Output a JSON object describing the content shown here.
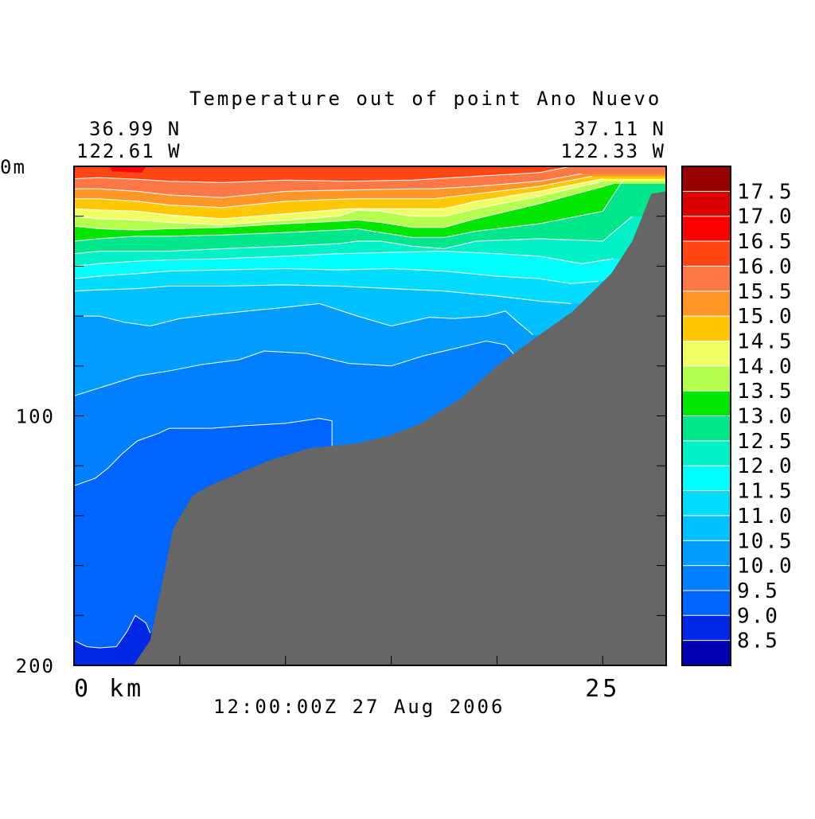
{
  "chart_data": {
    "type": "heatmap",
    "subtype": "filled-contour vertical section",
    "title": "Temperature out of point Ano Nuevo",
    "start_location": {
      "lat": "36.99 N",
      "lon": "122.61 W"
    },
    "end_location": {
      "lat": "37.11 N",
      "lon": "122.33 W"
    },
    "time_label": "12:00:00Z  27 Aug 2006",
    "x_axis": {
      "range": [
        0,
        28
      ],
      "ticks": [
        0,
        5,
        10,
        15,
        20,
        25
      ],
      "labels": [
        {
          "value": 0,
          "text": "0 km"
        },
        {
          "value": 25,
          "text": "25"
        }
      ]
    },
    "y_axis": {
      "range": [
        0,
        200
      ],
      "inverted": true,
      "ticks": [
        0,
        20,
        40,
        60,
        80,
        100,
        120,
        140,
        160,
        180,
        200
      ],
      "labels": [
        {
          "value": 0,
          "text": "0m"
        },
        {
          "value": 100,
          "text": "100"
        },
        {
          "value": 200,
          "text": "200"
        }
      ]
    },
    "colorbar": {
      "labels": [
        "17.5",
        "17.0",
        "16.5",
        "16.0",
        "15.5",
        "15.0",
        "14.5",
        "14.0",
        "13.5",
        "13.0",
        "12.5",
        "12.0",
        "11.5",
        "11.0",
        "10.5",
        "10.0",
        "9.5",
        "9.0",
        "8.5"
      ],
      "levels": [
        8.5,
        9.0,
        9.5,
        10.0,
        10.5,
        11.0,
        11.5,
        12.0,
        12.5,
        13.0,
        13.5,
        14.0,
        14.5,
        15.0,
        15.5,
        16.0,
        16.5,
        17.0,
        17.5
      ],
      "colors": [
        "#0000b4",
        "#0028e6",
        "#0064ff",
        "#0080ff",
        "#009cff",
        "#00c0ff",
        "#00dcff",
        "#00ffff",
        "#00f0c8",
        "#00e68c",
        "#00e600",
        "#b4ff50",
        "#f0ff64",
        "#ffc800",
        "#ff9628",
        "#ff7846",
        "#ff4614",
        "#ff0000",
        "#dc0000",
        "#960000"
      ]
    },
    "bathymetry_depth_m": {
      "x_km": [
        2.8,
        3.6,
        4.7,
        5.6,
        6.4,
        9.2,
        11.1,
        13.4,
        14.9,
        16.4,
        18.3,
        20.0,
        21.6,
        23.6,
        25.4,
        26.4,
        27.3,
        28.0
      ],
      "y_m": [
        200,
        190,
        145,
        132,
        128,
        118,
        113,
        111,
        108,
        103,
        93,
        80,
        70,
        58,
        43,
        30,
        11,
        10
      ],
      "color": "#666666"
    },
    "contour_lines_m": [
      {
        "level": 16.0,
        "x": [
          0,
          1.2,
          3.0,
          4.5,
          7.0,
          10.0,
          13.0,
          16.0,
          19.0,
          22.0,
          23.5
        ],
        "y": [
          5,
          4.5,
          5.2,
          6,
          6.5,
          5.5,
          6,
          5.5,
          4,
          2.5,
          0
        ]
      },
      {
        "level": 15.5,
        "x": [
          0,
          1.2,
          3.0,
          4.5,
          7.0,
          10.0,
          13.0,
          16.0,
          17.0,
          19.0,
          22.0,
          24.0
        ],
        "y": [
          9,
          9,
          10,
          11.5,
          12.5,
          10,
          9.5,
          9,
          9,
          8,
          6,
          3
        ]
      },
      {
        "level": 15.0,
        "x": [
          0,
          1.2,
          3.0,
          4.5,
          7.0,
          10.0,
          13.0,
          16.0,
          17.0,
          19.0,
          22.0,
          24.5
        ],
        "y": [
          13,
          13,
          14,
          15.5,
          16.5,
          14,
          13,
          13,
          13,
          11,
          8,
          4
        ]
      },
      {
        "level": 14.5,
        "x": [
          0,
          1.2,
          3.0,
          4.5,
          7.0,
          10.0,
          13.0,
          16.0,
          17.5,
          19.0,
          22.0,
          25.0
        ],
        "y": [
          17,
          17.5,
          18,
          19.5,
          21,
          19,
          17,
          17,
          17,
          14,
          10,
          5
        ]
      },
      {
        "level": 14.0,
        "x": [
          0,
          1.2,
          3.0,
          4.5,
          7.0,
          10.0,
          12.5,
          13.4,
          14.5,
          16.0,
          17.5,
          19.0,
          22.0,
          25.0
        ],
        "y": [
          20,
          21,
          21.5,
          22.5,
          23.5,
          21.5,
          20,
          17.5,
          18,
          20,
          20,
          17,
          12,
          6
        ]
      },
      {
        "level": 13.5,
        "x": [
          0,
          1.2,
          3.0,
          4.5,
          7.0,
          10.0,
          12.5,
          13.4,
          14.5,
          16.0,
          17.5,
          19.0,
          22.0,
          25.5
        ],
        "y": [
          24,
          25,
          25.5,
          25,
          24.5,
          23,
          22,
          21.5,
          22.5,
          24.5,
          24.5,
          21,
          15,
          7
        ]
      },
      {
        "level": 13.0,
        "x": [
          0,
          1.2,
          3.0,
          4.5,
          7.0,
          10.0,
          12.5,
          13.4,
          14.5,
          16.0,
          17.5,
          19.0,
          22.0,
          25.0,
          26.0
        ],
        "y": [
          30,
          29,
          28,
          28,
          27.5,
          26.5,
          25.5,
          25,
          26.5,
          28.5,
          28.5,
          26,
          23,
          18,
          5
        ]
      },
      {
        "level": 12.5,
        "x": [
          0,
          1.2,
          3.0,
          4.5,
          7.0,
          10.0,
          12.5,
          13.4,
          14.5,
          16.0,
          17.5,
          19.0,
          22.0,
          25.0,
          26.4
        ],
        "y": [
          35,
          34,
          34,
          34,
          33,
          32,
          31,
          30,
          30,
          32,
          33,
          30,
          29,
          30,
          20
        ]
      },
      {
        "level": 12.0,
        "x": [
          0,
          1.2,
          3.0,
          4.5,
          7.0,
          10.0,
          12.5,
          15.0,
          17.5,
          20.0,
          22.0,
          24.0,
          25.5
        ],
        "y": [
          40,
          39,
          38,
          37.5,
          37,
          36,
          35,
          34.5,
          34,
          35,
          36,
          39,
          37
        ]
      },
      {
        "level": 11.5,
        "x": [
          0,
          1.2,
          3.0,
          4.5,
          7.0,
          10.0,
          12.5,
          15.0,
          17.5,
          20.0,
          22.0,
          23.5,
          24.8
        ],
        "y": [
          45,
          44,
          43,
          42,
          41.5,
          41,
          41.5,
          41,
          42,
          44,
          45,
          47,
          46
        ]
      },
      {
        "level": 11.0,
        "x": [
          0,
          1.2,
          3.0,
          4.5,
          7.0,
          10.0,
          12.5,
          15.0,
          17.5,
          20.0,
          22.0,
          23.5
        ],
        "y": [
          50,
          49.5,
          49,
          48,
          48,
          47.5,
          48,
          49,
          50,
          52,
          54,
          55
        ]
      },
      {
        "level": 10.5,
        "x": [
          0,
          1.2,
          2.4,
          3.6,
          5.0,
          7.0,
          10.0,
          11.6,
          13.4,
          15.0,
          16.8,
          18.0,
          19.5,
          20.4,
          21.0,
          21.7
        ],
        "y": [
          60,
          60,
          62.5,
          64,
          61,
          59,
          56.5,
          55,
          60,
          64,
          60.5,
          61,
          60,
          58,
          62.5,
          67.5
        ]
      },
      {
        "level": 10.0,
        "x": [
          0,
          1.5,
          3.0,
          4.5,
          6.0,
          7.8,
          9.0,
          11.0,
          13.0,
          15.0,
          16.5,
          18.0,
          19.5,
          20.4,
          21.3
        ],
        "y": [
          92,
          88,
          84,
          82,
          79.5,
          77.5,
          74,
          75,
          79,
          80,
          76,
          73,
          70,
          71.5,
          80
        ]
      },
      {
        "level": 9.5,
        "x": [
          0,
          1.0,
          1.6,
          2.3,
          3.0,
          4.0,
          4.5,
          6.5,
          8.0,
          10.0,
          11.6,
          12.2,
          12.2
        ],
        "y": [
          128,
          125,
          121,
          115,
          110,
          107,
          105,
          105,
          104,
          103,
          101,
          102,
          114
        ]
      },
      {
        "level": 9.0,
        "x": [
          0,
          0.6,
          1.2,
          2.0,
          2.5,
          2.9,
          3.4,
          3.6
        ],
        "y": [
          190,
          192.5,
          193,
          192.5,
          186.5,
          180,
          183,
          187
        ]
      }
    ]
  }
}
